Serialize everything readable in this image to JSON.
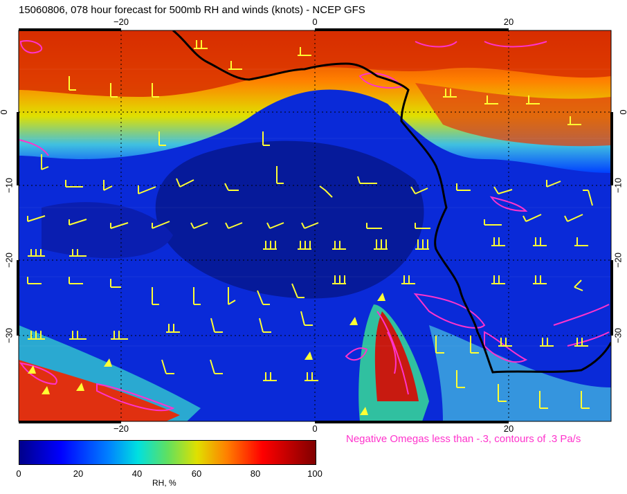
{
  "title": "15060806, 078 hour forecast for 500mb RH and winds (knots) - NCEP GFS",
  "axes": {
    "top_ticks": [
      "−20",
      "0",
      "20"
    ],
    "bottom_ticks": [
      "−20",
      "0",
      "20"
    ],
    "left_ticks": [
      "0",
      "−10",
      "−20",
      "−30"
    ],
    "right_ticks": [
      "0",
      "−10",
      "−20",
      "−30"
    ]
  },
  "note": "Negative Omegas less than -.3, contours of .3 Pa/s",
  "colorbar": {
    "ticks": [
      "0",
      "20",
      "40",
      "60",
      "80",
      "100"
    ],
    "label": "RH, %"
  },
  "colors": {
    "coastline": "#000000",
    "wind_barbs": "#ffff33",
    "omega_contours": "#ff33cc"
  }
}
